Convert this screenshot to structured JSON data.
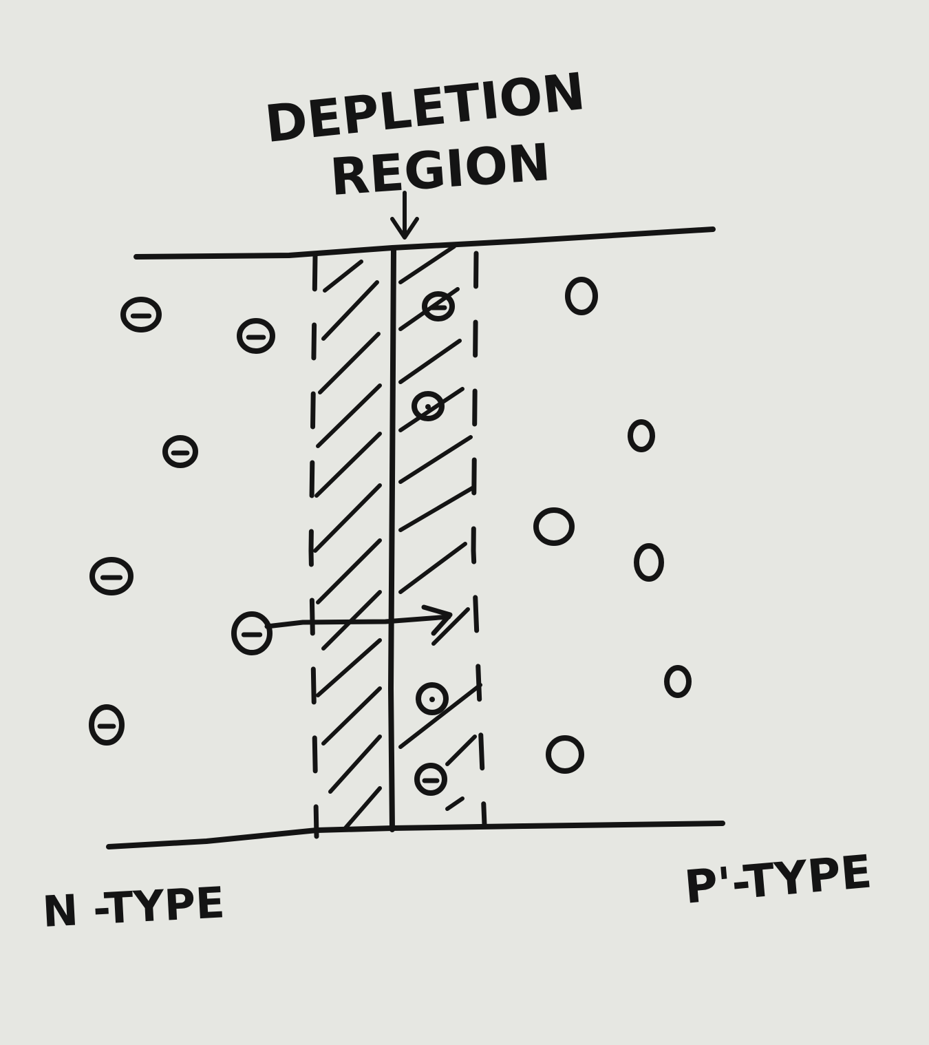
{
  "diagram": {
    "title_line1": "DEPLETION",
    "title_line2": "REGION",
    "left_label": "N -TYPE",
    "right_label": "P'-TYPE",
    "ink_color": "#141414",
    "paper_color": "#e6e7e2"
  }
}
